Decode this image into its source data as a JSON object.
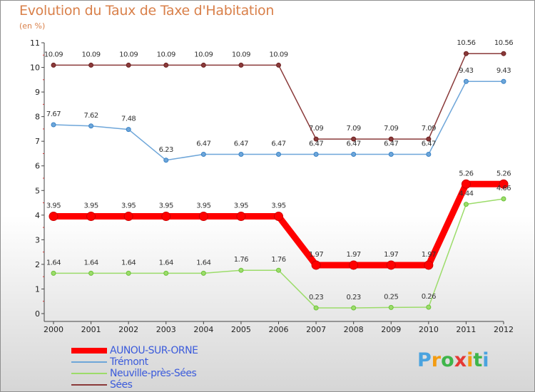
{
  "header": {
    "title": "Evolution du Taux de Taxe d'Habitation",
    "subtitle": "(en %)"
  },
  "logo": {
    "letters": [
      "P",
      "r",
      "o",
      "x",
      "i",
      "t",
      "i"
    ],
    "colors": [
      "#4aa3df",
      "#f39c12",
      "#3fb54a",
      "#e53935",
      "#f39c12",
      "#3fb54a",
      "#4aa3df"
    ]
  },
  "chart_data": {
    "type": "line",
    "title": "Evolution du Taux de Taxe d'Habitation",
    "ylabel": "(en %)",
    "x": [
      2000,
      2001,
      2002,
      2003,
      2004,
      2005,
      2006,
      2007,
      2008,
      2009,
      2010,
      2011,
      2012
    ],
    "ylim": [
      0,
      11
    ],
    "yticks": [
      0,
      1,
      2,
      3,
      4,
      5,
      6,
      7,
      8,
      9,
      10,
      11
    ],
    "grid": false,
    "legend_position": "bottom-left",
    "series": [
      {
        "name": "AUNOU-SUR-ORNE",
        "color": "#ff0000",
        "marker": "#cc0000",
        "width": 9,
        "values": [
          3.95,
          3.95,
          3.95,
          3.95,
          3.95,
          3.95,
          3.95,
          1.97,
          1.97,
          1.97,
          1.97,
          5.26,
          5.26
        ],
        "labels": [
          "3.95",
          "3.95",
          "3.95",
          "3.95",
          "3.95",
          "3.95",
          "3.95",
          "1.97",
          "1.97",
          "1.97",
          "1.97",
          "5.26",
          "5.26"
        ]
      },
      {
        "name": "Trémont",
        "color": "#6ea6d9",
        "marker": "#3a83c7",
        "width": 1.5,
        "values": [
          7.67,
          7.62,
          7.48,
          6.23,
          6.47,
          6.47,
          6.47,
          6.47,
          6.47,
          6.47,
          6.47,
          9.43,
          9.43
        ],
        "labels": [
          "7.67",
          "7.62",
          "7.48",
          "6.23",
          "6.47",
          "6.47",
          "6.47",
          "6.47",
          "6.47",
          "6.47",
          "6.47",
          "9.43",
          "9.43"
        ]
      },
      {
        "name": "Neuville-près-Sées",
        "color": "#9cdc6a",
        "marker": "#6cc23a",
        "width": 1.5,
        "values": [
          1.64,
          1.64,
          1.64,
          1.64,
          1.64,
          1.76,
          1.76,
          0.23,
          0.23,
          0.25,
          0.26,
          4.44,
          4.66
        ],
        "labels": [
          "1.64",
          "1.64",
          "1.64",
          "1.64",
          "1.64",
          "1.76",
          "1.76",
          "0.23",
          "0.23",
          "0.25",
          "0.26",
          "4.44",
          "4.66"
        ]
      },
      {
        "name": "Sées",
        "color": "#8a3a3a",
        "marker": "#6b1f1f",
        "width": 1.5,
        "values": [
          10.09,
          10.09,
          10.09,
          10.09,
          10.09,
          10.09,
          10.09,
          7.09,
          7.09,
          7.09,
          7.09,
          10.56,
          10.56
        ],
        "labels": [
          "10.09",
          "10.09",
          "10.09",
          "10.09",
          "10.09",
          "10.09",
          "10.09",
          "7.09",
          "7.09",
          "7.09",
          "7.09",
          "10.56",
          "10.56"
        ]
      }
    ]
  }
}
